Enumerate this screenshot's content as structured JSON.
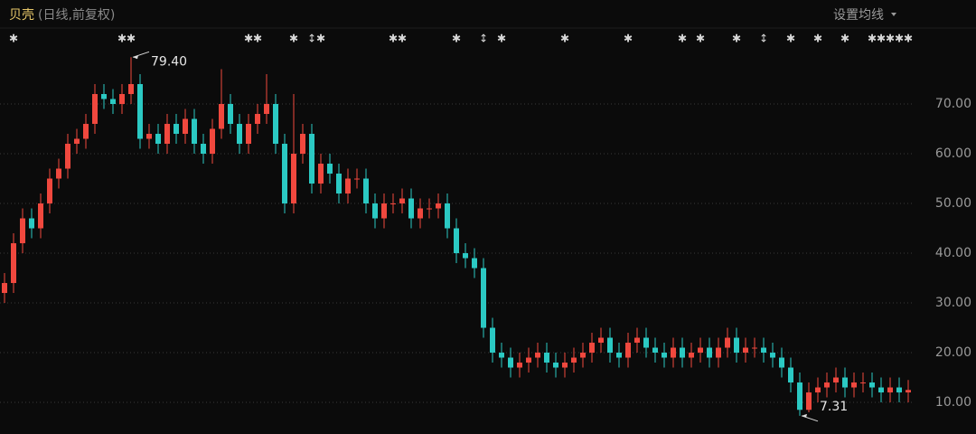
{
  "chart_data": {
    "type": "candlestick",
    "title": "贝壳",
    "subtitle": "(日线,前复权)",
    "button": "设置均线",
    "ylim": [
      3.64,
      90.91
    ],
    "yticks": [
      {
        "value": 10,
        "label": "10.00"
      },
      {
        "value": 20,
        "label": "20.00"
      },
      {
        "value": 30,
        "label": "30.00"
      },
      {
        "value": 40,
        "label": "40.00"
      },
      {
        "value": 50,
        "label": "50.00"
      },
      {
        "value": 60,
        "label": "60.00"
      },
      {
        "value": 70,
        "label": "70.00"
      }
    ],
    "grid": true,
    "up_color": "#f0483e",
    "down_color": "#2bc9c3",
    "open": [
      32,
      34,
      42,
      47,
      45,
      50,
      55,
      57,
      62,
      63,
      66,
      72,
      71,
      70,
      72,
      74,
      63,
      64,
      62,
      66,
      64,
      67,
      62,
      60,
      65,
      70,
      66,
      62,
      66,
      68,
      70,
      62,
      50,
      60,
      64,
      54,
      58,
      56,
      52,
      55,
      55,
      50,
      47,
      50,
      50,
      51,
      47,
      49,
      49,
      50,
      45,
      40,
      39,
      37,
      25,
      20,
      19,
      17,
      18,
      19,
      20,
      18,
      17,
      18,
      19,
      20,
      22,
      23,
      20,
      19,
      22,
      23,
      21,
      20,
      19,
      21,
      19,
      20,
      21,
      19,
      21,
      23,
      20,
      21,
      21,
      20,
      19,
      17,
      14,
      8.5,
      12,
      13,
      14,
      15,
      13,
      14,
      14,
      13,
      12,
      13,
      12
    ],
    "high": [
      36,
      44,
      49,
      49,
      52,
      57,
      59,
      64,
      65,
      68,
      74,
      74,
      73,
      74,
      79.4,
      76,
      66,
      66,
      68,
      68,
      69,
      69,
      64,
      67,
      77,
      72,
      68,
      68,
      70,
      76,
      72,
      64,
      72,
      66,
      66,
      60,
      60,
      58,
      57,
      57,
      57,
      52,
      52,
      52,
      53,
      53,
      51,
      51,
      52,
      52,
      47,
      42,
      41,
      39,
      27,
      22,
      21,
      20,
      21,
      22,
      22,
      20,
      20,
      21,
      22,
      24,
      25,
      25,
      22,
      24,
      25,
      25,
      23,
      22,
      23,
      23,
      22,
      23,
      23,
      23,
      25,
      25,
      23,
      23,
      23,
      22,
      21,
      19,
      16,
      14,
      15,
      16,
      17,
      17,
      16,
      16,
      16,
      15,
      15,
      15,
      14.5
    ],
    "low": [
      30,
      32,
      40,
      43,
      43,
      48,
      53,
      55,
      60,
      61,
      64,
      69,
      68,
      68,
      70,
      61,
      61,
      60,
      60,
      62,
      62,
      60,
      58,
      58,
      63,
      64,
      60,
      60,
      64,
      66,
      60,
      48,
      48,
      58,
      52,
      52,
      54,
      50,
      50,
      53,
      48,
      45,
      45,
      48,
      48,
      45,
      45,
      47,
      47,
      43,
      38,
      37,
      35,
      23,
      18,
      17,
      15,
      15,
      16,
      17,
      16,
      15,
      15,
      16,
      17,
      18,
      20,
      18,
      17,
      17,
      20,
      19,
      18,
      17,
      17,
      17,
      17,
      18,
      17,
      17,
      19,
      18,
      18,
      19,
      18,
      17,
      15,
      12,
      7.31,
      8,
      10,
      11,
      12,
      11,
      11,
      12,
      11,
      10,
      10,
      10,
      10
    ],
    "close": [
      34,
      42,
      47,
      45,
      50,
      55,
      57,
      62,
      63,
      66,
      72,
      71,
      70,
      72,
      74,
      63,
      64,
      62,
      66,
      64,
      67,
      62,
      60,
      65,
      70,
      66,
      62,
      66,
      68,
      70,
      62,
      50,
      60,
      64,
      54,
      58,
      56,
      52,
      55,
      55,
      50,
      47,
      50,
      50,
      51,
      47,
      49,
      49,
      50,
      45,
      40,
      39,
      37,
      25,
      20,
      19,
      17,
      18,
      19,
      20,
      18,
      17,
      18,
      19,
      20,
      22,
      23,
      20,
      19,
      22,
      23,
      21,
      20,
      19,
      21,
      19,
      20,
      21,
      19,
      21,
      23,
      20,
      21,
      21,
      20,
      19,
      17,
      14,
      8.5,
      12,
      13,
      14,
      15,
      13,
      14,
      14,
      13,
      12,
      13,
      12,
      12.5
    ],
    "max_label": {
      "index": 14,
      "value": 79.4,
      "label": "79.40"
    },
    "min_label": {
      "index": 88,
      "value": 7.31,
      "label": "7.31"
    },
    "events": [
      {
        "index": 1,
        "label": "✱"
      },
      {
        "index": 13,
        "label": "✱"
      },
      {
        "index": 14,
        "label": "✱"
      },
      {
        "index": 27,
        "label": "✱"
      },
      {
        "index": 28,
        "label": "✱"
      },
      {
        "index": 32,
        "label": "✱"
      },
      {
        "index": 34,
        "label": "↕"
      },
      {
        "index": 35,
        "label": "✱"
      },
      {
        "index": 43,
        "label": "✱"
      },
      {
        "index": 44,
        "label": "✱"
      },
      {
        "index": 50,
        "label": "✱"
      },
      {
        "index": 53,
        "label": "↕"
      },
      {
        "index": 55,
        "label": "✱"
      },
      {
        "index": 62,
        "label": "✱"
      },
      {
        "index": 69,
        "label": "✱"
      },
      {
        "index": 75,
        "label": "✱"
      },
      {
        "index": 77,
        "label": "✱"
      },
      {
        "index": 81,
        "label": "✱"
      },
      {
        "index": 84,
        "label": "↕"
      },
      {
        "index": 87,
        "label": "✱"
      },
      {
        "index": 90,
        "label": "✱"
      },
      {
        "index": 93,
        "label": "✱"
      },
      {
        "index": 96,
        "label": "✱"
      },
      {
        "index": 97,
        "label": "✱"
      },
      {
        "index": 98,
        "label": "✱"
      },
      {
        "index": 99,
        "label": "✱"
      },
      {
        "index": 100,
        "label": "✱"
      }
    ]
  }
}
